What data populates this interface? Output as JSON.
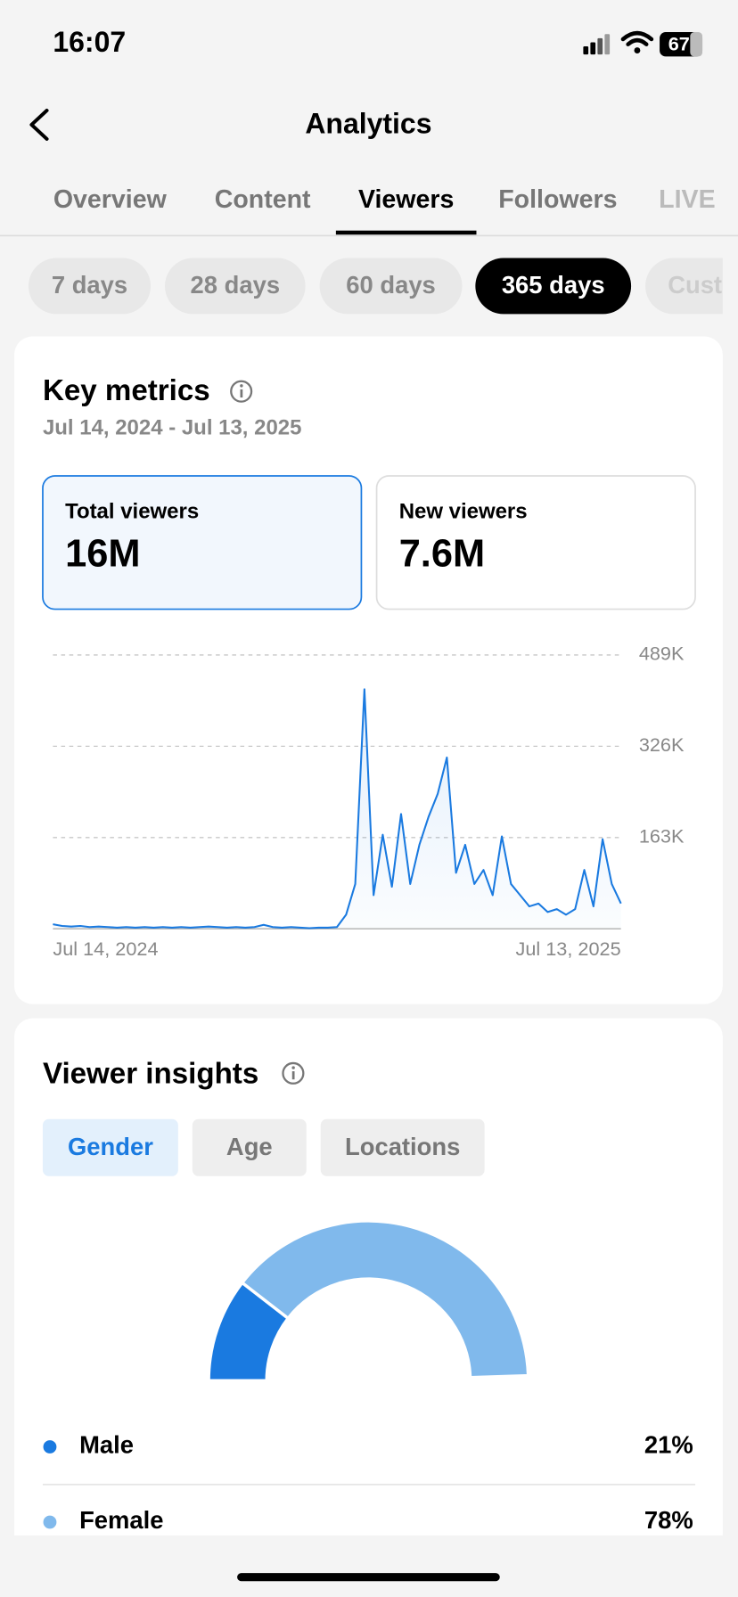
{
  "status_bar": {
    "time": "16:07",
    "battery": "67"
  },
  "header": {
    "title": "Analytics"
  },
  "tabs": [
    "Overview",
    "Content",
    "Viewers",
    "Followers",
    "LIVE"
  ],
  "periods": [
    "7 days",
    "28 days",
    "60 days",
    "365 days",
    "Cust"
  ],
  "key_metrics": {
    "title": "Key metrics",
    "date_range": "Jul 14, 2024 - Jul 13, 2025",
    "cards": [
      {
        "label": "Total viewers",
        "value": "16M"
      },
      {
        "label": "New viewers",
        "value": "7.6M"
      }
    ]
  },
  "viewer_insights": {
    "title": "Viewer insights",
    "tabs": [
      "Gender",
      "Age",
      "Locations"
    ]
  },
  "chart_data": [
    {
      "type": "line",
      "color": "#1a7ae0",
      "categories": [
        "Jul 14, 2024",
        null,
        null,
        null,
        null,
        null,
        null,
        null,
        null,
        null,
        null,
        null,
        null,
        null,
        null,
        null,
        null,
        null,
        null,
        null,
        null,
        null,
        null,
        null,
        null,
        null,
        null,
        null,
        null,
        null,
        null,
        null,
        null,
        null,
        null,
        null,
        null,
        null,
        null,
        null,
        null,
        null,
        null,
        null,
        null,
        null,
        null,
        null,
        null,
        null,
        null,
        null,
        null,
        null,
        null,
        null,
        null,
        null,
        null,
        null,
        null,
        null,
        "Jul 13, 2025"
      ],
      "values": [
        8000,
        5000,
        4000,
        5000,
        3000,
        4000,
        3000,
        2000,
        3000,
        2000,
        3000,
        2000,
        3000,
        2000,
        3000,
        2000,
        3000,
        4000,
        3000,
        2000,
        3000,
        2000,
        3000,
        7000,
        3000,
        2000,
        3000,
        2000,
        1000,
        2000,
        2000,
        3000,
        25000,
        80000,
        428000,
        60000,
        168000,
        75000,
        205000,
        80000,
        150000,
        200000,
        241000,
        306000,
        100000,
        150000,
        80000,
        105000,
        60000,
        165000,
        80000,
        60000,
        40000,
        45000,
        30000,
        35000,
        25000,
        35000,
        105000,
        40000,
        160000,
        80000,
        45000
      ],
      "ylim": [
        0,
        489000
      ],
      "yticks": [
        {
          "value": 163000,
          "label": "163K"
        },
        {
          "value": 326000,
          "label": "326K"
        },
        {
          "value": 489000,
          "label": "489K"
        }
      ],
      "grid": true
    },
    {
      "type": "donut",
      "categories": [
        "Male",
        "Female"
      ],
      "values": [
        21,
        78
      ],
      "value_labels": [
        "21%",
        "78%"
      ],
      "colors": [
        "#1a7ae0",
        "#80b9ec"
      ]
    }
  ]
}
